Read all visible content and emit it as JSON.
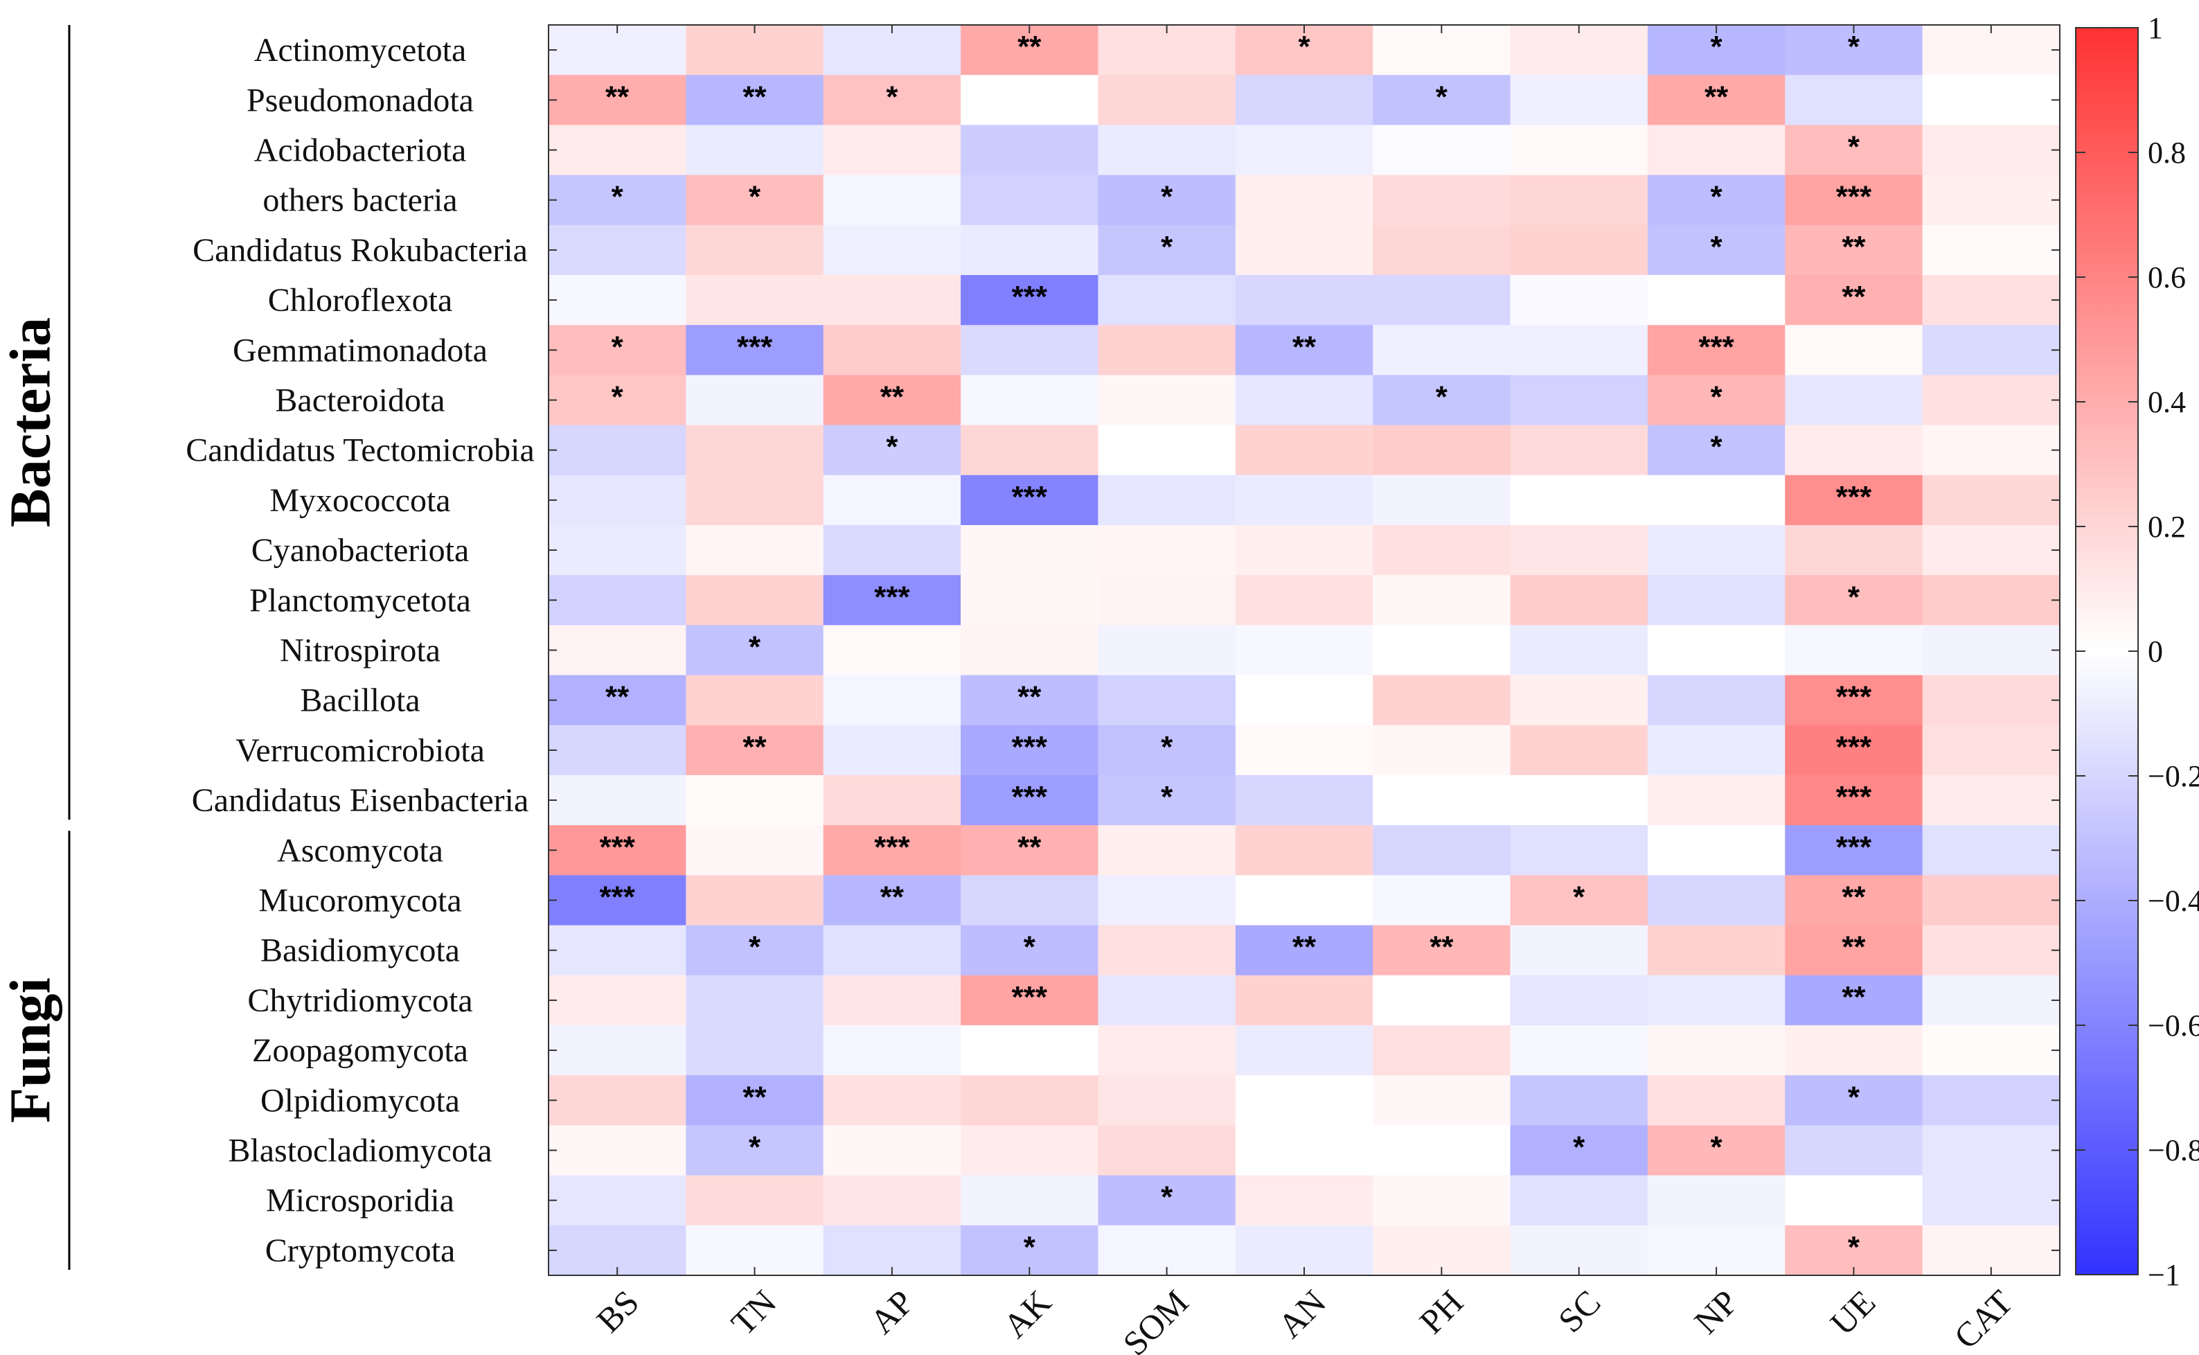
{
  "chart_data": {
    "type": "heatmap",
    "title": "",
    "xlabel": "",
    "ylabel": "",
    "columns": [
      "BS",
      "TN",
      "AP",
      "AK",
      "SOM",
      "AN",
      "PH",
      "SC",
      "NP",
      "UE",
      "CAT"
    ],
    "groups": [
      {
        "name": "Bacteria",
        "rows": [
          "Actinomycetota",
          "Pseudomonadota",
          "Acidobacteriota",
          "others bacteria",
          "Candidatus Rokubacteria",
          "Chloroflexota",
          "Gemmatimonadota",
          "Bacteroidota",
          "Candidatus Tectomicrobia",
          "Myxococcota",
          "Cyanobacteriota",
          "Planctomycetota",
          "Nitrospirota",
          "Bacillota",
          "Verrucomicrobiota",
          "Candidatus Eisenbacteria"
        ]
      },
      {
        "name": "Fungi",
        "rows": [
          "Ascomycota",
          "Mucoromycota",
          "Basidiomycota",
          "Chytridiomycota",
          "Zoopagomycota",
          "Olpidiomycota",
          "Blastocladiomycota",
          "Microsporidia",
          "Cryptomycota"
        ]
      }
    ],
    "rows": [
      "Actinomycetota",
      "Pseudomonadota",
      "Acidobacteriota",
      "others bacteria",
      "Candidatus Rokubacteria",
      "Chloroflexota",
      "Gemmatimonadota",
      "Bacteroidota",
      "Candidatus Tectomicrobia",
      "Myxococcota",
      "Cyanobacteriota",
      "Planctomycetota",
      "Nitrospirota",
      "Bacillota",
      "Verrucomicrobiota",
      "Candidatus Eisenbacteria",
      "Ascomycota",
      "Mucoromycota",
      "Basidiomycota",
      "Chytridiomycota",
      "Zoopagomycota",
      "Olpidiomycota",
      "Blastocladiomycota",
      "Microsporidia",
      "Cryptomycota"
    ],
    "values": [
      [
        -0.08,
        0.22,
        -0.12,
        0.42,
        0.15,
        0.28,
        0.03,
        0.1,
        -0.35,
        -0.32,
        0.05
      ],
      [
        0.4,
        -0.35,
        0.3,
        0.0,
        0.2,
        -0.2,
        -0.3,
        -0.08,
        0.42,
        -0.15,
        0.0
      ],
      [
        0.1,
        -0.1,
        0.1,
        -0.25,
        -0.1,
        -0.08,
        -0.02,
        0.03,
        0.1,
        0.32,
        0.1
      ],
      [
        -0.28,
        0.32,
        -0.05,
        -0.22,
        -0.32,
        0.08,
        0.18,
        0.2,
        -0.32,
        0.45,
        0.08
      ],
      [
        -0.18,
        0.2,
        -0.08,
        -0.1,
        -0.28,
        0.08,
        0.2,
        0.22,
        -0.3,
        0.35,
        0.03
      ],
      [
        -0.04,
        0.12,
        0.12,
        -0.62,
        -0.15,
        -0.2,
        -0.2,
        -0.03,
        0.0,
        0.38,
        0.15
      ],
      [
        0.32,
        -0.48,
        0.25,
        -0.18,
        0.22,
        -0.35,
        -0.08,
        -0.08,
        0.45,
        0.03,
        -0.18
      ],
      [
        0.28,
        -0.06,
        0.42,
        -0.04,
        0.04,
        -0.12,
        -0.28,
        -0.22,
        0.35,
        -0.12,
        0.15
      ],
      [
        -0.2,
        0.2,
        -0.25,
        0.2,
        0.0,
        0.22,
        0.25,
        0.18,
        -0.3,
        0.1,
        0.05
      ],
      [
        -0.12,
        0.2,
        -0.05,
        -0.6,
        -0.12,
        -0.1,
        -0.06,
        0.0,
        0.0,
        0.55,
        0.2
      ],
      [
        -0.1,
        0.05,
        -0.18,
        0.04,
        0.05,
        0.08,
        0.15,
        0.12,
        -0.1,
        0.2,
        0.1
      ],
      [
        -0.22,
        0.22,
        -0.55,
        0.04,
        0.06,
        0.15,
        0.04,
        0.25,
        -0.15,
        0.32,
        0.25
      ],
      [
        0.06,
        -0.3,
        0.03,
        0.06,
        -0.06,
        -0.04,
        0.0,
        -0.1,
        0.0,
        -0.04,
        -0.06
      ],
      [
        -0.38,
        0.22,
        -0.05,
        -0.32,
        -0.22,
        0.0,
        0.22,
        0.08,
        -0.2,
        0.55,
        0.18
      ],
      [
        -0.2,
        0.38,
        -0.1,
        -0.42,
        -0.3,
        0.03,
        0.04,
        0.22,
        -0.1,
        0.62,
        0.15
      ],
      [
        -0.06,
        0.02,
        0.18,
        -0.48,
        -0.28,
        -0.2,
        0.0,
        0.0,
        0.08,
        0.58,
        0.1
      ],
      [
        0.5,
        0.04,
        0.42,
        0.38,
        0.08,
        0.22,
        -0.2,
        -0.15,
        0.0,
        -0.48,
        -0.15
      ],
      [
        -0.62,
        0.22,
        -0.35,
        -0.2,
        -0.08,
        0.0,
        -0.04,
        0.3,
        -0.2,
        0.42,
        0.25
      ],
      [
        -0.12,
        -0.3,
        -0.15,
        -0.32,
        0.15,
        -0.42,
        0.35,
        -0.06,
        0.22,
        0.45,
        0.15
      ],
      [
        0.1,
        -0.18,
        0.12,
        0.45,
        -0.12,
        0.22,
        0.0,
        -0.12,
        -0.1,
        -0.42,
        -0.06
      ],
      [
        -0.06,
        -0.18,
        -0.05,
        0.0,
        0.1,
        -0.1,
        0.15,
        -0.04,
        0.04,
        0.08,
        0.02
      ],
      [
        0.2,
        -0.38,
        0.15,
        0.2,
        0.12,
        0.0,
        0.04,
        -0.28,
        0.15,
        -0.32,
        -0.22
      ],
      [
        0.04,
        -0.28,
        0.04,
        0.1,
        0.18,
        0.0,
        0.0,
        -0.38,
        0.35,
        -0.2,
        -0.12
      ],
      [
        -0.12,
        0.18,
        0.12,
        -0.06,
        -0.32,
        0.1,
        0.04,
        -0.15,
        -0.06,
        0.0,
        -0.12
      ],
      [
        -0.2,
        -0.04,
        -0.15,
        -0.3,
        -0.05,
        -0.1,
        0.08,
        -0.06,
        -0.04,
        0.32,
        0.06
      ]
    ],
    "significance": [
      [
        "",
        "",
        "",
        "**",
        "",
        "*",
        "",
        "",
        "*",
        "*",
        ""
      ],
      [
        "**",
        "**",
        "*",
        "",
        "",
        "",
        "*",
        "",
        "**",
        "",
        ""
      ],
      [
        "",
        "",
        "",
        "",
        "",
        "",
        "",
        "",
        "",
        "*",
        ""
      ],
      [
        "*",
        "*",
        "",
        "",
        "*",
        "",
        "",
        "",
        "*",
        "***",
        ""
      ],
      [
        "",
        "",
        "",
        "",
        "*",
        "",
        "",
        "",
        "*",
        "**",
        ""
      ],
      [
        "",
        "",
        "",
        "***",
        "",
        "",
        "",
        "",
        "",
        "**",
        ""
      ],
      [
        "*",
        "***",
        "",
        "",
        "",
        "**",
        "",
        "",
        "***",
        "",
        ""
      ],
      [
        "*",
        "",
        "**",
        "",
        "",
        "",
        "*",
        "",
        "*",
        "",
        ""
      ],
      [
        "",
        "",
        "*",
        "",
        "",
        "",
        "",
        "",
        "*",
        "",
        ""
      ],
      [
        "",
        "",
        "",
        "***",
        "",
        "",
        "",
        "",
        "",
        "***",
        ""
      ],
      [
        "",
        "",
        "",
        "",
        "",
        "",
        "",
        "",
        "",
        "",
        ""
      ],
      [
        "",
        "",
        "***",
        "",
        "",
        "",
        "",
        "",
        "",
        "*",
        ""
      ],
      [
        "",
        "*",
        "",
        "",
        "",
        "",
        "",
        "",
        "",
        "",
        ""
      ],
      [
        "**",
        "",
        "",
        "**",
        "",
        "",
        "",
        "",
        "",
        "***",
        ""
      ],
      [
        "",
        "**",
        "",
        "***",
        "*",
        "",
        "",
        "",
        "",
        "***",
        ""
      ],
      [
        "",
        "",
        "",
        "***",
        "*",
        "",
        "",
        "",
        "",
        "***",
        ""
      ],
      [
        "***",
        "",
        "***",
        "**",
        "",
        "",
        "",
        "",
        "",
        "***",
        ""
      ],
      [
        "***",
        "",
        "**",
        "",
        "",
        "",
        "",
        "*",
        "",
        "**",
        ""
      ],
      [
        "",
        "*",
        "",
        "*",
        "",
        "**",
        "**",
        "",
        "",
        "**",
        ""
      ],
      [
        "",
        "",
        "",
        "***",
        "",
        "",
        "",
        "",
        "",
        "**",
        ""
      ],
      [
        "",
        "",
        "",
        "",
        "",
        "",
        "",
        "",
        "",
        "",
        ""
      ],
      [
        "",
        "**",
        "",
        "",
        "",
        "",
        "",
        "",
        "",
        "*",
        ""
      ],
      [
        "",
        "*",
        "",
        "",
        "",
        "",
        "",
        "*",
        "*",
        "",
        ""
      ],
      [
        "",
        "",
        "",
        "",
        "*",
        "",
        "",
        "",
        "",
        "",
        ""
      ],
      [
        "",
        "",
        "",
        "*",
        "",
        "",
        "",
        "",
        "",
        "*",
        ""
      ]
    ],
    "colorbar": {
      "range": [
        -1,
        1
      ],
      "ticks": [
        1,
        0.8,
        0.6,
        0.4,
        0.2,
        0,
        -0.2,
        -0.4,
        -0.6,
        -0.8,
        -1
      ],
      "tick_labels": [
        "1",
        "0.8",
        "0.6",
        "0.4",
        "0.2",
        "0",
        "−0.2",
        "−0.4",
        "−0.6",
        "−0.8",
        "−1"
      ],
      "colors": {
        "negative": "#3232ff",
        "zero": "#ffffff",
        "positive": "#ff3232"
      }
    }
  }
}
